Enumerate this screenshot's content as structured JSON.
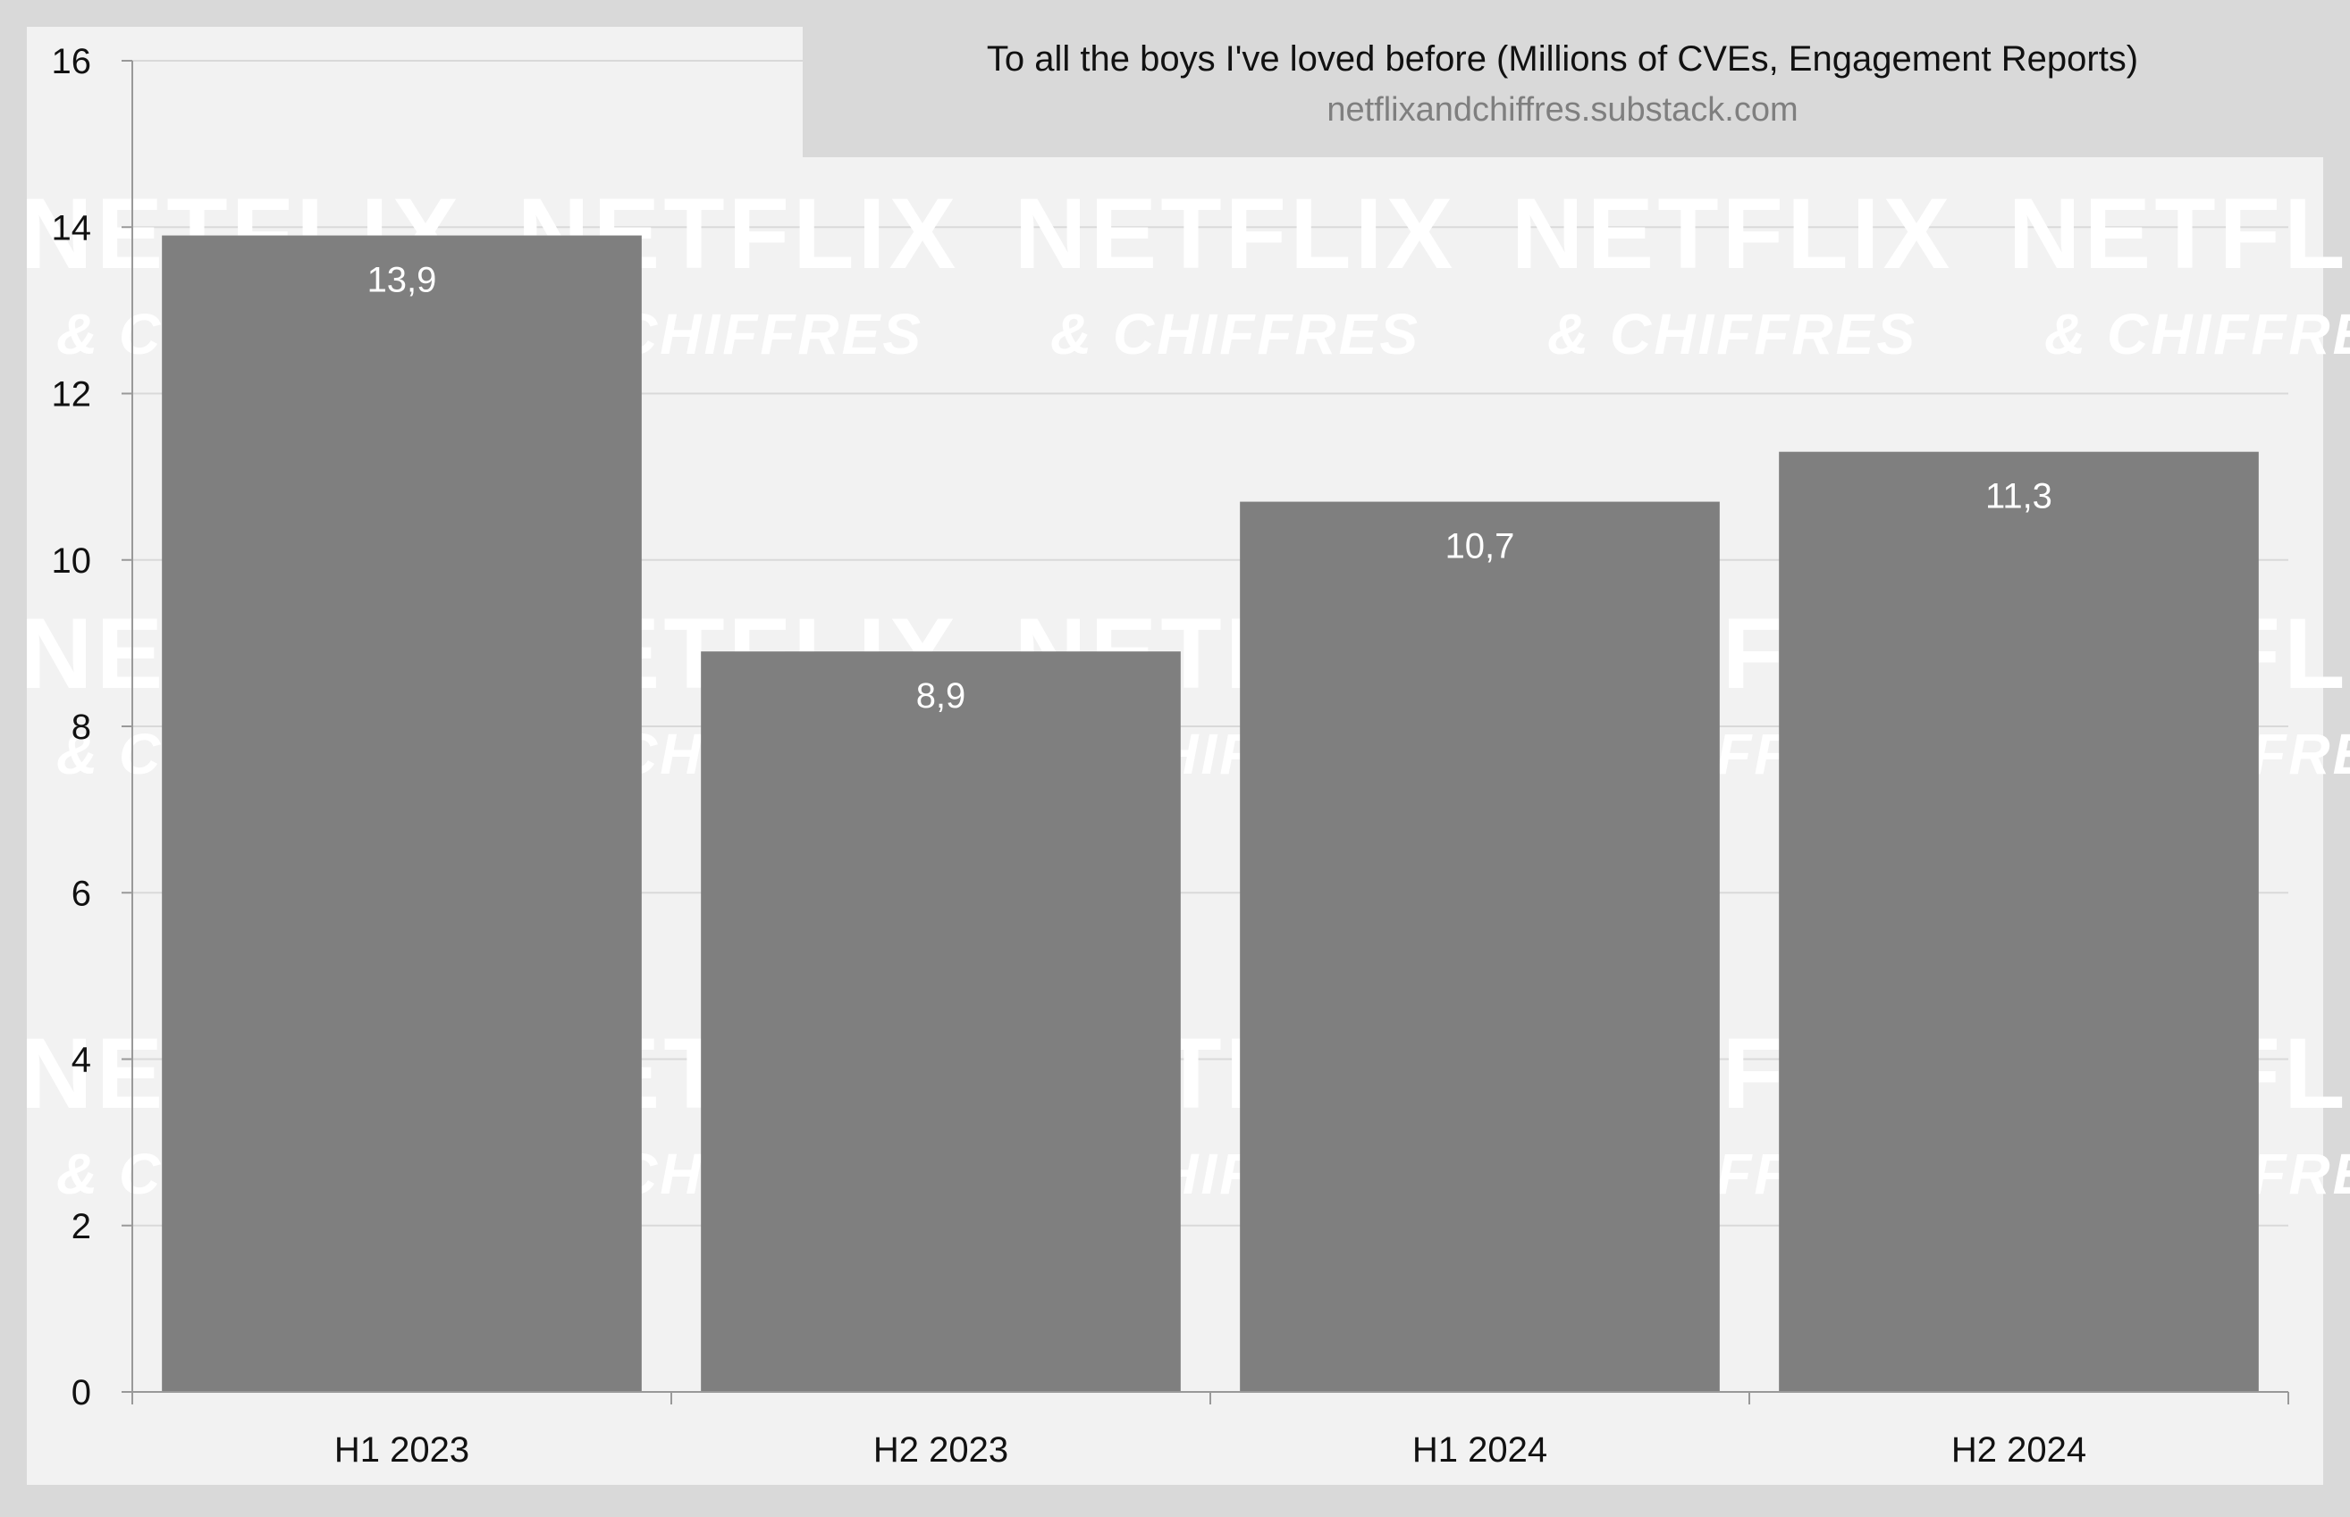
{
  "watermark": {
    "line1": "NETFLIX",
    "line2": "& CHIFFRES"
  },
  "colors": {
    "frame": "#d9d9d9",
    "plot_background": "#f2f2f2",
    "title_box": "#d9d9d9",
    "bar": "#7f7f7f",
    "gridline": "#d9d9d9",
    "axis": "#999999",
    "data_label": "#ffffff"
  },
  "chart_data": {
    "type": "bar",
    "title": "To all the boys I've loved before (Millions of CVEs, Engagement Reports)",
    "subtitle": "netflixandchiffres.substack.com",
    "categories": [
      "H1 2023",
      "H2 2023",
      "H1 2024",
      "H2 2024"
    ],
    "values": [
      13.9,
      8.9,
      10.7,
      11.3
    ],
    "data_labels": [
      "13,9",
      "8,9",
      "10,7",
      "11,3"
    ],
    "ylim": [
      0,
      16
    ],
    "yticks": [
      0,
      2,
      4,
      6,
      8,
      10,
      12,
      14,
      16
    ],
    "xlabel": "",
    "ylabel": "",
    "grid": true,
    "legend": "none"
  }
}
